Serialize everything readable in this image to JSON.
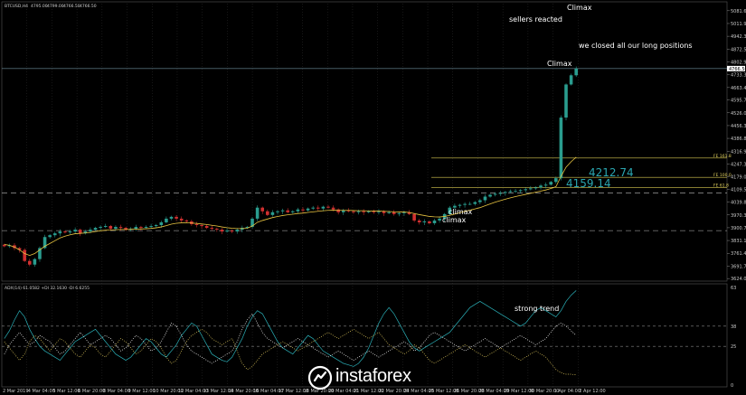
{
  "chart_data": {
    "type": "candlestick",
    "symbol_header": "BTCUSD,H4",
    "header_ohlc": [
      "4795.00",
      "4799.00",
      "4766.50",
      "4766.50"
    ],
    "price_ticks": [
      "5081.60",
      "5011.90",
      "4942.30",
      "4872.50",
      "4802.90",
      "4733.30",
      "4663.45",
      "4595.70",
      "4526.00",
      "4456.35",
      "4386.85",
      "4316.95",
      "4247.30",
      "4179.00",
      "4109.50",
      "4039.80",
      "3970.30",
      "3900.75",
      "3831.10",
      "3761.40",
      "3691.70",
      "3624.00"
    ],
    "ylim": [
      3620,
      5120
    ],
    "current_price": "4766.50",
    "time_labels": [
      "2 Mar 2019",
      "4 Mar 04:00",
      "5 Mar 12:00",
      "6 Mar 20:00",
      "8 Mar 04:00",
      "9 Mar 12:00",
      "10 Mar 20:00",
      "12 Mar 04:00",
      "13 Mar 12:00",
      "14 Mar 20:00",
      "16 Mar 04:00",
      "17 Mar 12:00",
      "18 Mar 20:00",
      "20 Mar 04:00",
      "21 Mar 12:00",
      "22 Mar 20:00",
      "24 Mar 04:00",
      "25 Mar 12:00",
      "26 Mar 20:00",
      "28 Mar 04:00",
      "29 Mar 12:00",
      "30 Mar 20:00",
      "1 Apr 04:00",
      "2 Apr 12:00"
    ],
    "close_path": [
      3800,
      3805,
      3790,
      3780,
      3720,
      3700,
      3730,
      3790,
      3850,
      3860,
      3870,
      3880,
      3875,
      3880,
      3890,
      3870,
      3880,
      3890,
      3900,
      3905,
      3910,
      3895,
      3905,
      3900,
      3890,
      3895,
      3905,
      3900,
      3905,
      3910,
      3915,
      3930,
      3950,
      3960,
      3950,
      3940,
      3935,
      3920,
      3915,
      3910,
      3900,
      3895,
      3890,
      3880,
      3885,
      3880,
      3890,
      3900,
      3905,
      3950,
      4010,
      3990,
      3970,
      3985,
      3990,
      3995,
      3985,
      3990,
      4000,
      3995,
      4005,
      4010,
      4005,
      4015,
      4010,
      4000,
      3985,
      3995,
      3990,
      3985,
      3990,
      3985,
      3990,
      3985,
      3990,
      3980,
      3985,
      3975,
      3980,
      3985,
      3975,
      3940,
      3930,
      3935,
      3925,
      3940,
      3950,
      3975,
      4010,
      4020,
      4025,
      4030,
      4030,
      4040,
      4050,
      4070,
      4080,
      4085,
      4090,
      4095,
      4100,
      4100,
      4105,
      4110,
      4115,
      4120,
      4130,
      4135,
      4150,
      4170,
      4500,
      4680,
      4730,
      4766
    ],
    "ema_path": [
      3810,
      3805,
      3795,
      3780,
      3760,
      3750,
      3760,
      3780,
      3800,
      3815,
      3830,
      3845,
      3855,
      3862,
      3868,
      3870,
      3872,
      3875,
      3880,
      3884,
      3887,
      3888,
      3890,
      3891,
      3891,
      3892,
      3893,
      3894,
      3895,
      3897,
      3900,
      3905,
      3912,
      3920,
      3925,
      3927,
      3928,
      3926,
      3924,
      3921,
      3918,
      3914,
      3910,
      3905,
      3901,
      3898,
      3896,
      3896,
      3898,
      3910,
      3930,
      3940,
      3948,
      3956,
      3962,
      3967,
      3971,
      3974,
      3978,
      3980,
      3984,
      3987,
      3990,
      3993,
      3995,
      3996,
      3995,
      3995,
      3995,
      3994,
      3993,
      3993,
      3992,
      3991,
      3991,
      3990,
      3989,
      3987,
      3986,
      3986,
      3984,
      3978,
      3972,
      3967,
      3962,
      3960,
      3959,
      3962,
      3968,
      3975,
      3982,
      3990,
      3996,
      4003,
      4010,
      4020,
      4030,
      4040,
      4048,
      4056,
      4063,
      4070,
      4076,
      4082,
      4088,
      4094,
      4100,
      4106,
      4114,
      4124,
      4180,
      4230,
      4260,
      4285
    ],
    "levels": [
      {
        "label": "FE 161.8",
        "price": 4280
      },
      {
        "label": "FE 100.0",
        "price": 4175
      },
      {
        "label": "FE 61.8",
        "price": 4120
      }
    ],
    "dashed_levels": [
      4090,
      3885
    ],
    "boxed_prices": [
      "4212.74",
      "4159.14"
    ],
    "annotations": [
      "Climax",
      "sellers reacted",
      "we closed all our long positions",
      "Climax",
      "climax",
      "climax",
      "strong trend"
    ],
    "indicator": {
      "header": "ADX(14) 61.0582 +DI 32.1630 -DI 6.6255",
      "ticks": [
        "63",
        "38",
        "25",
        "0"
      ],
      "ylim": [
        0,
        63
      ],
      "levels": [
        38,
        25
      ],
      "adx": [
        30,
        35,
        42,
        48,
        44,
        36,
        30,
        25,
        22,
        20,
        18,
        16,
        20,
        24,
        28,
        30,
        32,
        34,
        36,
        32,
        28,
        24,
        20,
        18,
        16,
        18,
        22,
        26,
        30,
        28,
        24,
        20,
        18,
        22,
        26,
        32,
        36,
        40,
        38,
        32,
        26,
        20,
        18,
        16,
        15,
        18,
        24,
        30,
        38,
        44,
        48,
        46,
        40,
        34,
        28,
        24,
        22,
        20,
        24,
        28,
        32,
        30,
        26,
        22,
        20,
        18,
        16,
        14,
        13,
        12,
        14,
        18,
        24,
        32,
        40,
        46,
        50,
        46,
        40,
        34,
        28,
        24,
        22,
        24,
        26,
        28,
        30,
        32,
        34,
        38,
        42,
        46,
        50,
        52,
        54,
        52,
        50,
        48,
        46,
        44,
        42,
        40,
        38,
        40,
        44,
        48,
        50,
        48,
        46,
        44,
        48,
        54,
        58,
        61
      ],
      "plus_di": [
        20,
        26,
        30,
        34,
        30,
        26,
        28,
        32,
        30,
        28,
        24,
        20,
        22,
        26,
        30,
        34,
        30,
        26,
        28,
        30,
        32,
        30,
        26,
        22,
        24,
        28,
        32,
        30,
        26,
        22,
        24,
        28,
        34,
        40,
        38,
        32,
        26,
        22,
        20,
        18,
        16,
        14,
        16,
        18,
        20,
        22,
        28,
        36,
        42,
        46,
        40,
        34,
        30,
        28,
        26,
        24,
        26,
        28,
        30,
        28,
        26,
        24,
        22,
        20,
        18,
        20,
        22,
        20,
        18,
        16,
        18,
        20,
        22,
        20,
        18,
        20,
        22,
        24,
        26,
        28,
        26,
        22,
        24,
        28,
        32,
        34,
        32,
        30,
        28,
        26,
        24,
        22,
        24,
        26,
        28,
        30,
        28,
        26,
        24,
        26,
        28,
        30,
        32,
        30,
        28,
        26,
        28,
        30,
        34,
        38,
        40,
        38,
        35,
        32
      ],
      "minus_di": [
        28,
        24,
        20,
        16,
        20,
        28,
        32,
        30,
        26,
        22,
        26,
        30,
        28,
        24,
        20,
        18,
        22,
        26,
        24,
        20,
        18,
        22,
        26,
        30,
        28,
        24,
        20,
        22,
        26,
        30,
        28,
        24,
        18,
        14,
        16,
        22,
        28,
        32,
        34,
        36,
        34,
        30,
        28,
        26,
        28,
        30,
        22,
        14,
        10,
        12,
        16,
        20,
        22,
        24,
        26,
        28,
        26,
        24,
        22,
        24,
        26,
        28,
        30,
        32,
        34,
        32,
        30,
        32,
        34,
        36,
        34,
        32,
        30,
        32,
        34,
        30,
        26,
        24,
        22,
        20,
        22,
        26,
        24,
        20,
        16,
        14,
        16,
        18,
        20,
        22,
        24,
        26,
        24,
        22,
        20,
        18,
        20,
        22,
        24,
        22,
        20,
        18,
        16,
        18,
        20,
        22,
        20,
        18,
        14,
        10,
        8,
        7,
        7,
        6.6
      ]
    }
  },
  "colors": {
    "background": "#000000",
    "bull_candle": "#2a9d8f",
    "bear_candle": "#d03030",
    "ema": "#e8c440",
    "fib": "#d8c850",
    "adx": "#2ab0b8",
    "plus_di": "#ffffff",
    "minus_di": "#e8d060",
    "grid": "#3a3a3a"
  },
  "brand": {
    "name": "instaforex"
  }
}
